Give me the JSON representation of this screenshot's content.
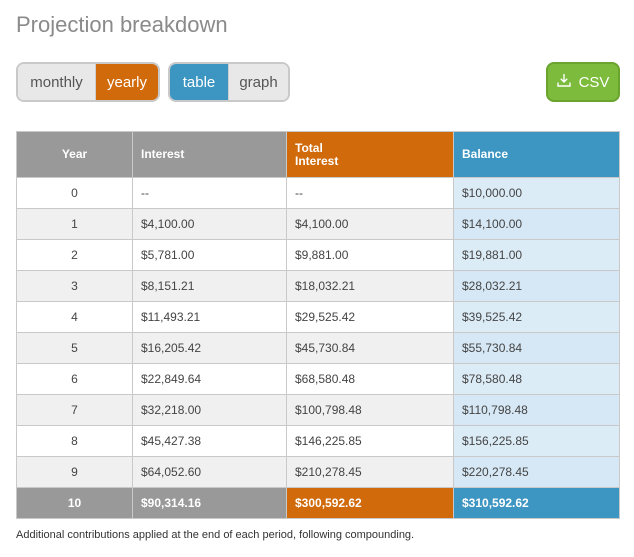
{
  "title": "Projection breakdown",
  "period_toggle": {
    "options": [
      "monthly",
      "yearly"
    ],
    "selected": "yearly"
  },
  "view_toggle": {
    "options": [
      "table",
      "graph"
    ],
    "selected": "table"
  },
  "csv_button": {
    "label": "CSV",
    "icon": "download-icon"
  },
  "table": {
    "headers": [
      "Year",
      "Interest",
      "Total Interest",
      "Balance"
    ],
    "rows": [
      [
        "0",
        "--",
        "--",
        "$10,000.00"
      ],
      [
        "1",
        "$4,100.00",
        "$4,100.00",
        "$14,100.00"
      ],
      [
        "2",
        "$5,781.00",
        "$9,881.00",
        "$19,881.00"
      ],
      [
        "3",
        "$8,151.21",
        "$18,032.21",
        "$28,032.21"
      ],
      [
        "4",
        "$11,493.21",
        "$29,525.42",
        "$39,525.42"
      ],
      [
        "5",
        "$16,205.42",
        "$45,730.84",
        "$55,730.84"
      ],
      [
        "6",
        "$22,849.64",
        "$68,580.48",
        "$78,580.48"
      ],
      [
        "7",
        "$32,218.00",
        "$100,798.48",
        "$110,798.48"
      ],
      [
        "8",
        "$45,427.38",
        "$146,225.85",
        "$156,225.85"
      ],
      [
        "9",
        "$64,052.60",
        "$210,278.45",
        "$220,278.45"
      ]
    ],
    "total_row": [
      "10",
      "$90,314.16",
      "$300,592.62",
      "$310,592.62"
    ]
  },
  "note": "Additional contributions applied at the end of each period, following compounding.",
  "colors": {
    "orange": "#d06a0a",
    "blue": "#3d95c1",
    "gray": "#999999",
    "green": "#7dbb3c"
  }
}
